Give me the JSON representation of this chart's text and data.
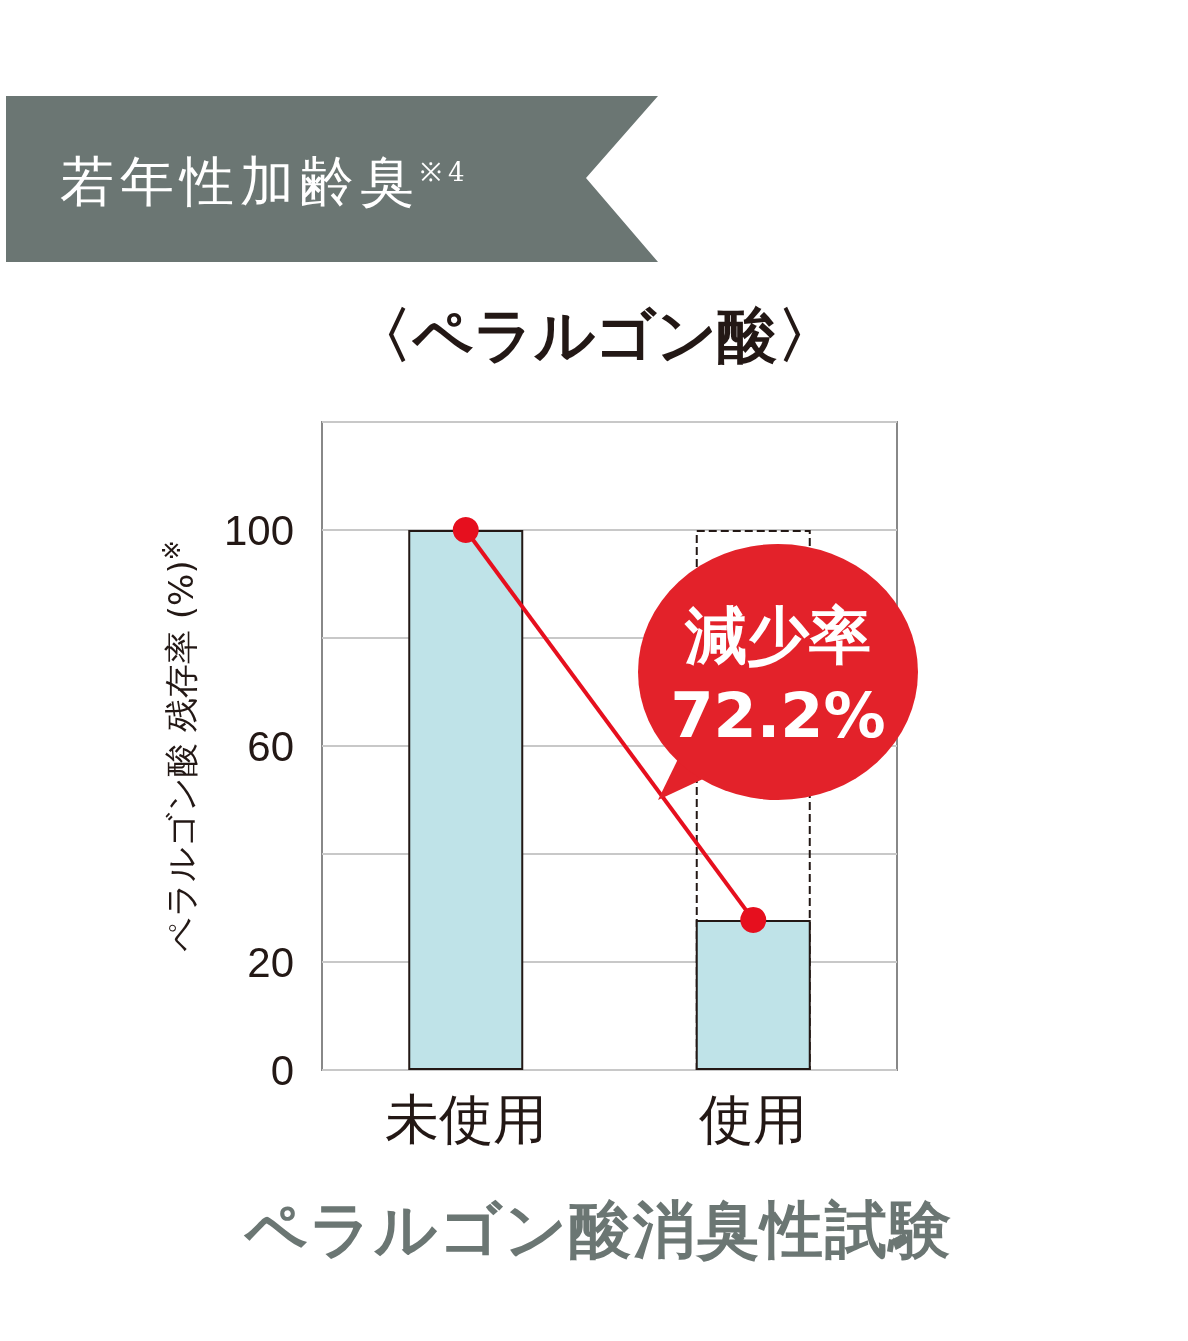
{
  "chart_data": {
    "type": "bar",
    "title": "〈ペラルゴン酸〉",
    "subtitle": "若年性加齢臭$^{※4}$",
    "ylabel": "ペラルゴン酸 残存率 (%)$^{※}$",
    "categories": [
      "未使用",
      "使用"
    ],
    "series": [
      {
        "type": "bar",
        "color": "#bfe3e8",
        "values": [
          100,
          27.8
        ]
      },
      {
        "type": "bar",
        "color": "#231815",
        "line_style": "dashed",
        "values": [
          null,
          100
        ]
      },
      {
        "type": "line",
        "color": "#e60f1e",
        "marker": "circle",
        "values": [
          100,
          27.8
        ]
      }
    ],
    "ylim": [
      0,
      120
    ],
    "yticks": [
      0,
      20,
      {
        "value": 40,
        "label": null
      },
      60,
      {
        "value": 80,
        "label": null
      },
      100,
      {
        "value": 120,
        "label": null
      }
    ],
    "grid": "y",
    "annotations": [
      "減少率\n72.2%",
      "ペラルゴン酸消臭性試験"
    ]
  }
}
